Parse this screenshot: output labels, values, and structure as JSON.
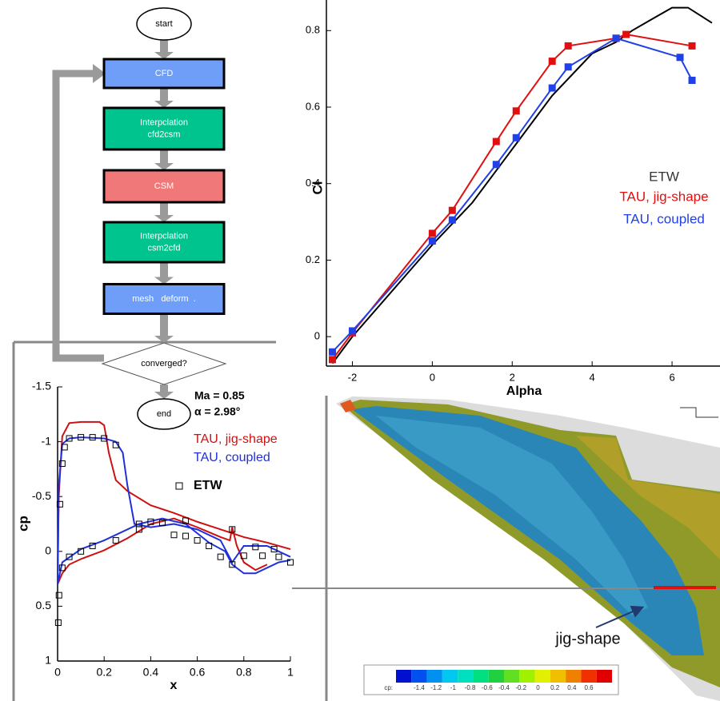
{
  "flowchart": {
    "nodes": [
      {
        "lines": [
          "start"
        ]
      },
      {
        "lines": [
          "CFD"
        ]
      },
      {
        "lines": [
          "Interpclation",
          "cfd2csm"
        ]
      },
      {
        "lines": [
          "CSM"
        ]
      },
      {
        "lines": [
          "Interpclation",
          "csm2cfd"
        ]
      },
      {
        "lines": [
          "mesh   deform  ."
        ]
      },
      {
        "lines": [
          "converged?"
        ]
      },
      {
        "lines": [
          "end"
        ]
      }
    ]
  },
  "chart_data": [
    {
      "type": "line",
      "x_label": "Alpha",
      "y_label": "Cl",
      "xlim": [
        -2.65,
        7.2
      ],
      "ylim": [
        -0.077,
        0.88
      ],
      "xticks": [
        -2,
        0,
        2,
        4,
        6
      ],
      "yticks": [
        0,
        0.2,
        0.4,
        0.6,
        0.8
      ],
      "series": [
        {
          "name": "ETW",
          "color": "#000000",
          "marker": "none",
          "line": true,
          "x": [
            -2.5,
            -2,
            0,
            1,
            2,
            3,
            4,
            4.6,
            5,
            5.5,
            6,
            6.4,
            7
          ],
          "values": [
            -0.07,
            0.0,
            0.24,
            0.35,
            0.49,
            0.63,
            0.74,
            0.77,
            0.8,
            0.83,
            0.86,
            0.86,
            0.82
          ]
        },
        {
          "name": "TAU, jig-shape",
          "color": "#e01010",
          "marker": "square",
          "line": true,
          "x": [
            -2.5,
            -2,
            0,
            0.5,
            1.6,
            2.1,
            3,
            3.4,
            4.6,
            4.85,
            6.5
          ],
          "values": [
            -0.06,
            0.01,
            0.27,
            0.33,
            0.51,
            0.59,
            0.72,
            0.76,
            0.78,
            0.79,
            0.76
          ]
        },
        {
          "name": "TAU, coupled",
          "color": "#2040e8",
          "marker": "square",
          "line": true,
          "x": [
            -2.5,
            -2,
            0,
            0.5,
            1.6,
            2.1,
            3,
            3.4,
            4.6,
            6.2,
            6.5
          ],
          "values": [
            -0.04,
            0.015,
            0.25,
            0.305,
            0.45,
            0.52,
            0.65,
            0.705,
            0.78,
            0.73,
            0.67
          ]
        }
      ]
    },
    {
      "type": "line",
      "x_label": "x",
      "y_label": "cp",
      "annotations": [
        "Ma = 0.85",
        "α = 2.98°"
      ],
      "xlim": [
        0,
        1
      ],
      "ylim": [
        -1.5,
        1
      ],
      "y_reversed": true,
      "xticks": [
        0,
        0.2,
        0.4,
        0.6,
        0.8,
        1
      ],
      "yticks": [
        -1.5,
        -1,
        -0.5,
        0,
        0.5,
        1
      ],
      "series": [
        {
          "name": "TAU, jig-shape",
          "color": "#d01010",
          "marker": "none",
          "line": true,
          "x": [
            0.9,
            0.85,
            0.8,
            0.77,
            0.75,
            0.74,
            0.7,
            0.6,
            0.5,
            0.4,
            0.3,
            0.2,
            0.1,
            0.05,
            0.02,
            0,
            0.005,
            0.02,
            0.05,
            0.1,
            0.18,
            0.2,
            0.22,
            0.25,
            0.3,
            0.4,
            0.5,
            0.6,
            0.7,
            0.8,
            0.9,
            1
          ],
          "values": [
            0.12,
            0.17,
            0.1,
            -0.05,
            -0.22,
            -0.1,
            -0.13,
            -0.22,
            -0.3,
            -0.25,
            -0.12,
            -0.01,
            0.07,
            0.12,
            0.2,
            0.3,
            -0.5,
            -1.05,
            -1.17,
            -1.18,
            -1.18,
            -1.15,
            -0.9,
            -0.65,
            -0.55,
            -0.42,
            -0.35,
            -0.27,
            -0.2,
            -0.13,
            -0.08,
            -0.02
          ]
        },
        {
          "name": "TAU, coupled",
          "color": "#2030d8",
          "marker": "none",
          "line": true,
          "x": [
            1,
            0.95,
            0.85,
            0.8,
            0.75,
            0.72,
            0.65,
            0.55,
            0.45,
            0.35,
            0.2,
            0.1,
            0.02,
            0,
            0.005,
            0.02,
            0.05,
            0.1,
            0.2,
            0.25,
            0.28,
            0.3,
            0.33,
            0.4,
            0.5,
            0.6,
            0.7,
            0.75,
            0.8,
            0.9,
            1
          ],
          "values": [
            0.08,
            0.1,
            0.2,
            0.2,
            0.12,
            0.0,
            -0.08,
            -0.25,
            -0.3,
            -0.25,
            -0.1,
            -0.02,
            0.1,
            0.3,
            -0.6,
            -0.98,
            -1.03,
            -1.04,
            -1.03,
            -1.0,
            -0.9,
            -0.6,
            -0.25,
            -0.22,
            -0.25,
            -0.2,
            -0.1,
            0.1,
            -0.05,
            -0.05,
            0.05
          ]
        },
        {
          "name": "ETW",
          "color": "#000000",
          "marker": "hollow-square",
          "line": false,
          "x": [
            0.003,
            0.006,
            0.01,
            0.02,
            0.03,
            0.05,
            0.1,
            0.15,
            0.2,
            0.25,
            0.35,
            0.45,
            0.55,
            0.75,
            0.85,
            0.93,
            1,
            0.02,
            0.05,
            0.1,
            0.15,
            0.25,
            0.35,
            0.4,
            0.5,
            0.55,
            0.6,
            0.65,
            0.7,
            0.75,
            0.8,
            0.88,
            0.95
          ],
          "values": [
            0.65,
            0.4,
            -0.43,
            -0.8,
            -0.95,
            -1.03,
            -1.04,
            -1.04,
            -1.03,
            -0.97,
            -0.25,
            -0.26,
            -0.28,
            -0.2,
            -0.04,
            -0.02,
            0.1,
            0.15,
            0.05,
            0.0,
            -0.05,
            -0.1,
            -0.2,
            -0.27,
            -0.15,
            -0.14,
            -0.1,
            -0.05,
            0.05,
            0.12,
            0.04,
            0.04,
            0.05
          ]
        }
      ]
    }
  ],
  "wing_view": {
    "annotation": "jig-shape",
    "colorbar": {
      "label": "cp:",
      "ticks": [
        -1.4,
        -1.2,
        -1,
        -0.8,
        -0.6,
        -0.4,
        -0.2,
        0,
        0.2,
        0.4,
        0.6
      ]
    }
  }
}
